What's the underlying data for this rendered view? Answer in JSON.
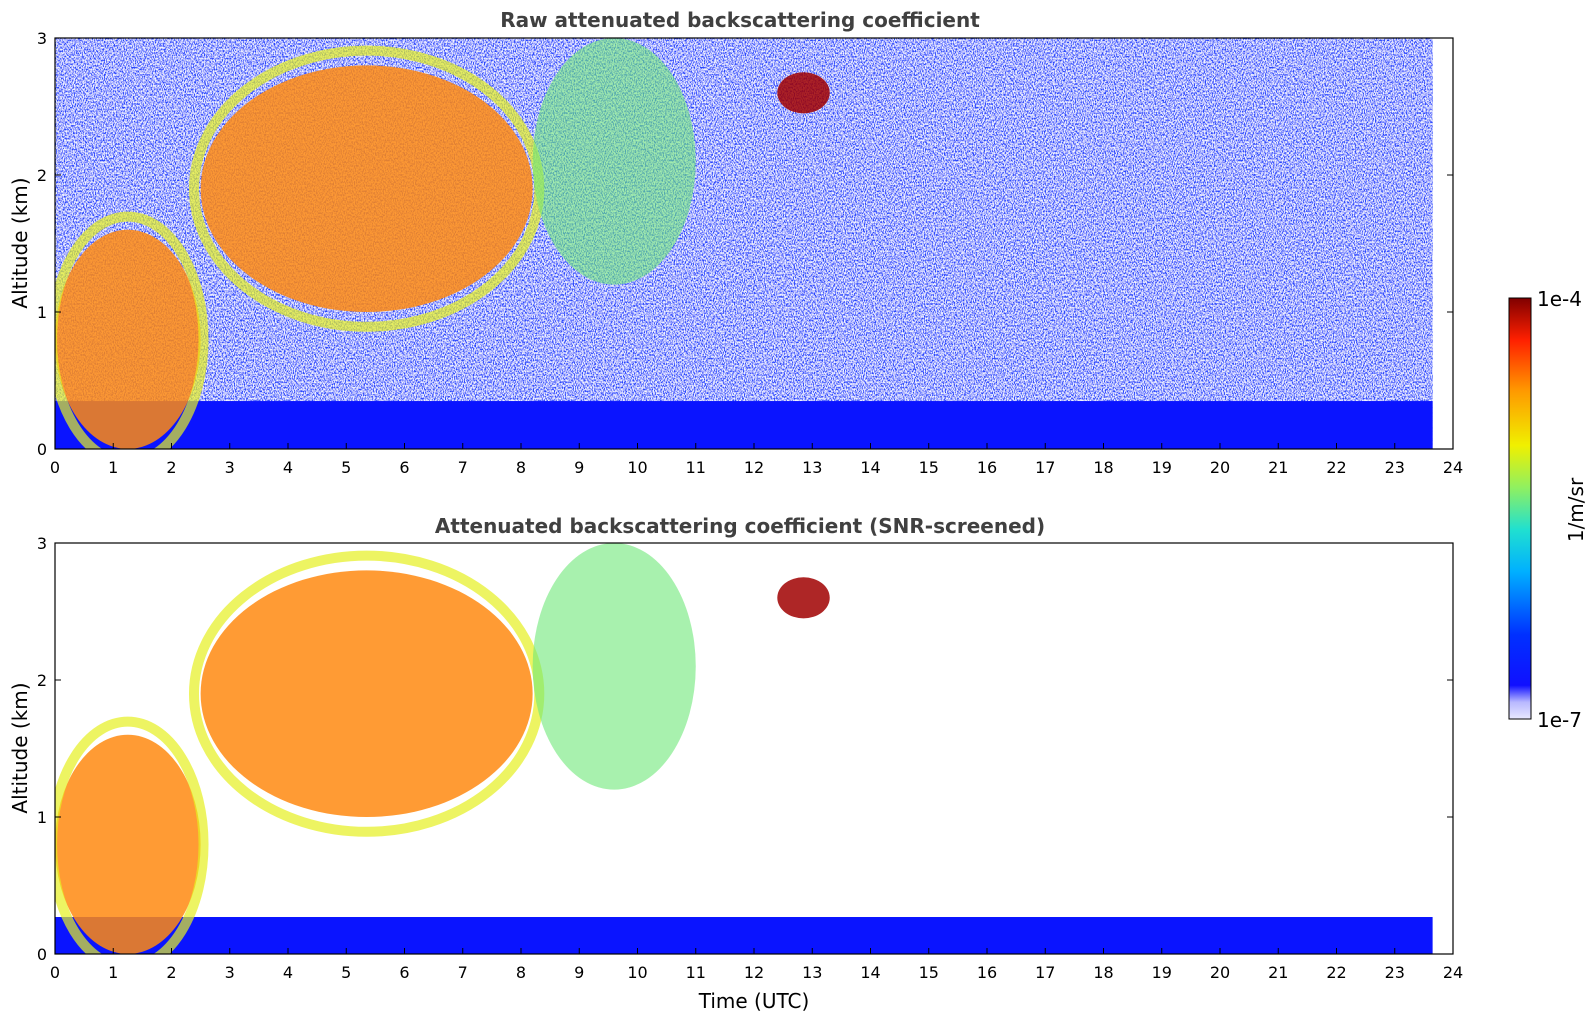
{
  "chart_data": [
    {
      "type": "heatmap",
      "title": "Raw attenuated backscattering coefficient",
      "xlabel": "",
      "ylabel": "Altitude (km)",
      "xlim": [
        0,
        24
      ],
      "ylim": [
        0,
        3
      ],
      "xticks": [
        "0",
        "1",
        "2",
        "3",
        "4",
        "5",
        "6",
        "7",
        "8",
        "9",
        "10",
        "11",
        "12",
        "13",
        "14",
        "15",
        "16",
        "17",
        "18",
        "19",
        "20",
        "21",
        "22",
        "23",
        "24"
      ],
      "yticks": [
        "0",
        "1",
        "2",
        "3"
      ],
      "data_end_time": 23.65,
      "features": [
        {
          "name": "boundary layer",
          "time_range": [
            0,
            23.65
          ],
          "altitude_top": 0.35,
          "level": "low"
        },
        {
          "name": "aerosol layer",
          "time_range": [
            0,
            2.5
          ],
          "altitude_range": [
            0,
            1.6
          ],
          "level": "high"
        },
        {
          "name": "cloud / aerosol band",
          "time_range": [
            2.5,
            8.2
          ],
          "altitude_range": [
            1.0,
            2.8
          ],
          "level": "high"
        },
        {
          "name": "diffuse layer",
          "time_range": [
            8.2,
            11.0
          ],
          "altitude_range": [
            1.2,
            3.0
          ],
          "level": "medium"
        },
        {
          "name": "thin cloud",
          "time_range": [
            12.4,
            13.3
          ],
          "altitude_range": [
            2.45,
            2.75
          ],
          "level": "very high"
        }
      ]
    },
    {
      "type": "heatmap",
      "title": "Attenuated backscattering coefficient (SNR-screened)",
      "xlabel": "Time (UTC)",
      "ylabel": "Altitude (km)",
      "xlim": [
        0,
        24
      ],
      "ylim": [
        0,
        3
      ],
      "xticks": [
        "0",
        "1",
        "2",
        "3",
        "4",
        "5",
        "6",
        "7",
        "8",
        "9",
        "10",
        "11",
        "12",
        "13",
        "14",
        "15",
        "16",
        "17",
        "18",
        "19",
        "20",
        "21",
        "22",
        "23",
        "24"
      ],
      "yticks": [
        "0",
        "1",
        "2",
        "3"
      ],
      "data_end_time": 23.65,
      "features": [
        {
          "name": "boundary layer",
          "time_range": [
            0,
            23.65
          ],
          "altitude_top": 0.27,
          "level": "low"
        },
        {
          "name": "aerosol layer",
          "time_range": [
            0,
            2.5
          ],
          "altitude_range": [
            0,
            1.6
          ],
          "level": "high"
        },
        {
          "name": "cloud / aerosol band",
          "time_range": [
            2.5,
            8.2
          ],
          "altitude_range": [
            1.0,
            2.8
          ],
          "level": "high"
        },
        {
          "name": "diffuse layer",
          "time_range": [
            8.2,
            11.0
          ],
          "altitude_range": [
            1.2,
            3.0
          ],
          "level": "medium"
        },
        {
          "name": "thin cloud",
          "time_range": [
            12.4,
            13.3
          ],
          "altitude_range": [
            2.45,
            2.75
          ],
          "level": "very high"
        }
      ]
    }
  ],
  "colorbar": {
    "label": "1/m/sr",
    "max_label": "1e-4",
    "min_label": "1e-7",
    "scale": "log",
    "colormap": [
      "#e8e8ff",
      "#0000ff",
      "#00aaff",
      "#20e0d0",
      "#80ff60",
      "#f0f000",
      "#ff9900",
      "#ff2000",
      "#800000"
    ]
  }
}
